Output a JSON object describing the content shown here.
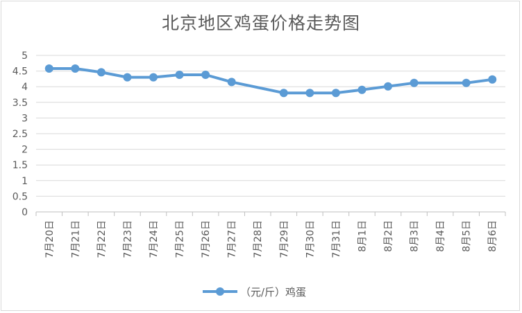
{
  "chart_data": {
    "type": "line",
    "title": "北京地区鸡蛋价格走势图",
    "categories": [
      "7月20日",
      "7月21日",
      "7月22日",
      "7月23日",
      "7月24日",
      "7月25日",
      "7月26日",
      "7月27日",
      "7月28日",
      "7月29日",
      "7月30日",
      "7月31日",
      "8月1日",
      "8月2日",
      "8月3日",
      "8月4日",
      "8月5日",
      "8月6日"
    ],
    "series": [
      {
        "name": "（元/斤）鸡蛋",
        "values": [
          4.58,
          4.58,
          4.46,
          4.3,
          4.3,
          4.38,
          4.38,
          4.15,
          null,
          3.8,
          3.8,
          3.8,
          3.9,
          4.01,
          4.12,
          null,
          4.12,
          4.23
        ],
        "color": "#5b9bd5"
      }
    ],
    "yticks": [
      "0",
      "0.5",
      "1",
      "1.5",
      "2",
      "2.5",
      "3",
      "3.5",
      "4",
      "4.5",
      "5"
    ],
    "ylim": [
      0,
      5
    ],
    "grid": true,
    "legend_position": "bottom"
  }
}
